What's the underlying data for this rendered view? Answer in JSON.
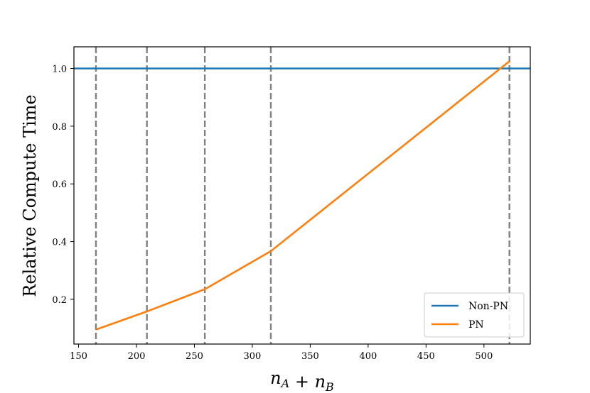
{
  "chart_data": {
    "type": "line",
    "xlabel": "n_A + n_B",
    "ylabel": "Relative Compute Time",
    "xlim": [
      146,
      540
    ],
    "ylim": [
      0.045,
      1.075
    ],
    "xticks": [
      150,
      200,
      250,
      300,
      350,
      400,
      450,
      500
    ],
    "yticks": [
      0.2,
      0.4,
      0.6,
      0.8,
      1.0
    ],
    "ytick_labels": [
      "0.2",
      "0.4",
      "0.6",
      "0.8",
      "1.0"
    ],
    "grid": false,
    "legend_position": "lower-right",
    "vertical_reference_lines": [
      165,
      209,
      259,
      316,
      522
    ],
    "series": [
      {
        "name": "Non-PN",
        "color": "#1f77b4",
        "line": "horizontal",
        "values": [
          1.0
        ]
      },
      {
        "name": "PN",
        "color": "#ff7f0e",
        "x": [
          165,
          209,
          259,
          316,
          522
        ],
        "values": [
          0.095,
          0.158,
          0.235,
          0.367,
          1.025
        ]
      }
    ],
    "colors": {
      "reference_line": "#808080",
      "axes": "#000000"
    }
  }
}
